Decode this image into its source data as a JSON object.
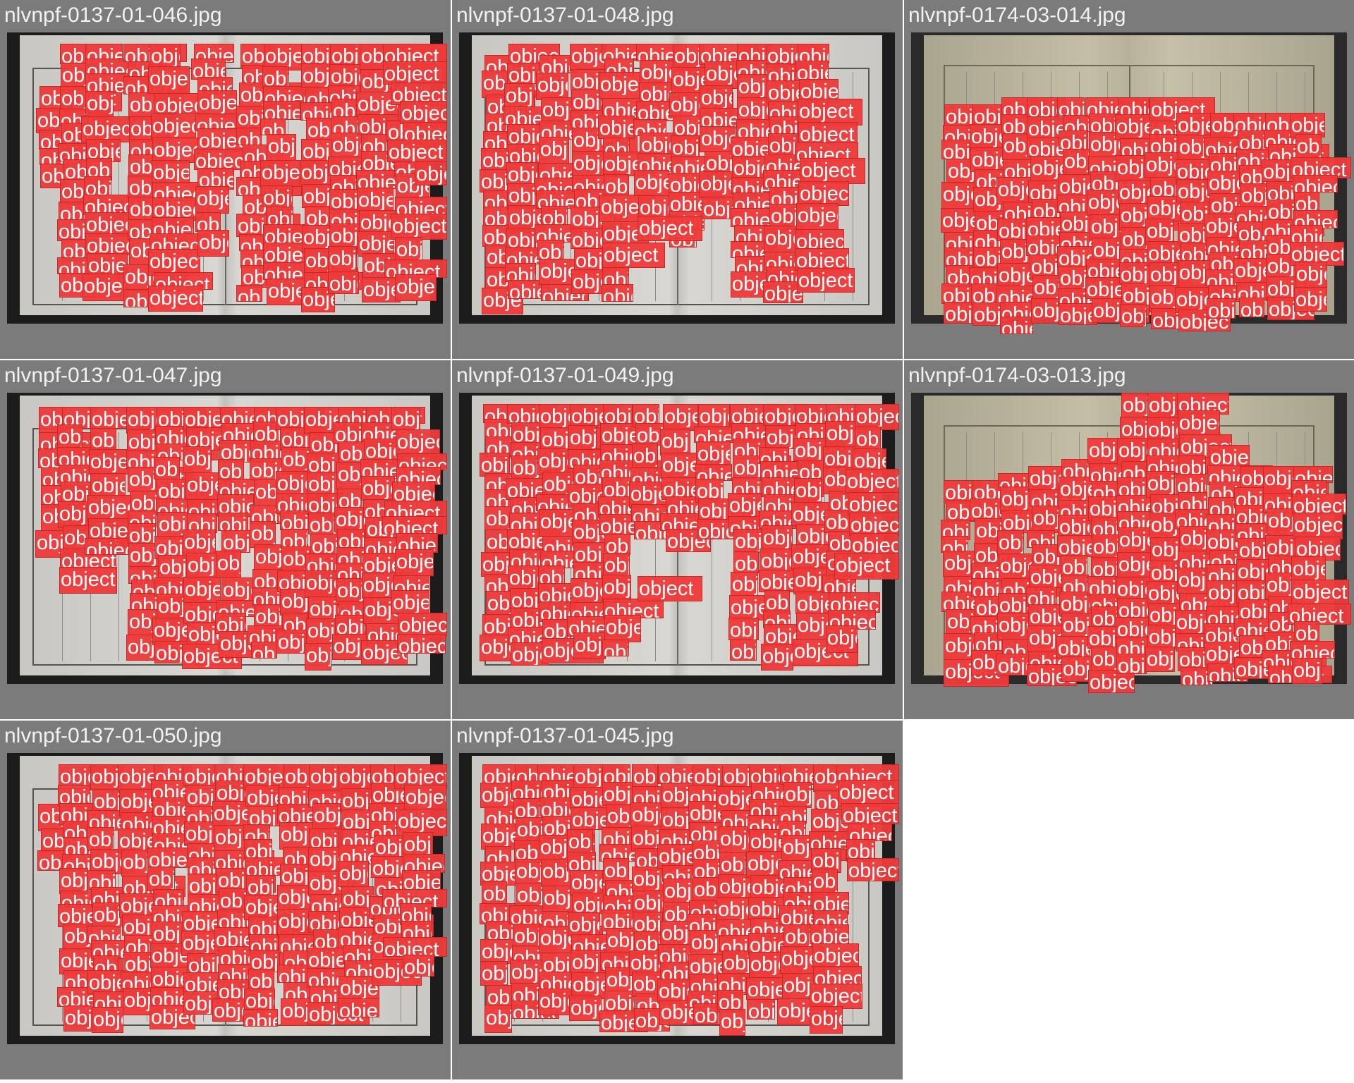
{
  "detection_label": "object",
  "colors": {
    "tile_background": "#7b7b7b",
    "title_text": "#f2f2f2",
    "box_fill": "#ee3a3a",
    "paper": "#d6d4cf",
    "aged_paper": "#c2bca4"
  },
  "tiles": [
    {
      "title": "nlvnpf-0137-01-046.jpg",
      "paper_style": "grey"
    },
    {
      "title": "nlvnpf-0137-01-048.jpg",
      "paper_style": "grey"
    },
    {
      "title": "nlvnpf-0174-03-014.jpg",
      "paper_style": "aged"
    },
    {
      "title": "nlvnpf-0137-01-047.jpg",
      "paper_style": "grey"
    },
    {
      "title": "nlvnpf-0137-01-049.jpg",
      "paper_style": "grey"
    },
    {
      "title": "nlvnpf-0174-03-013.jpg",
      "paper_style": "aged"
    },
    {
      "title": "nlvnpf-0137-01-050.jpg",
      "paper_style": "grey"
    },
    {
      "title": "nlvnpf-0137-01-045.jpg",
      "paper_style": "grey"
    }
  ]
}
